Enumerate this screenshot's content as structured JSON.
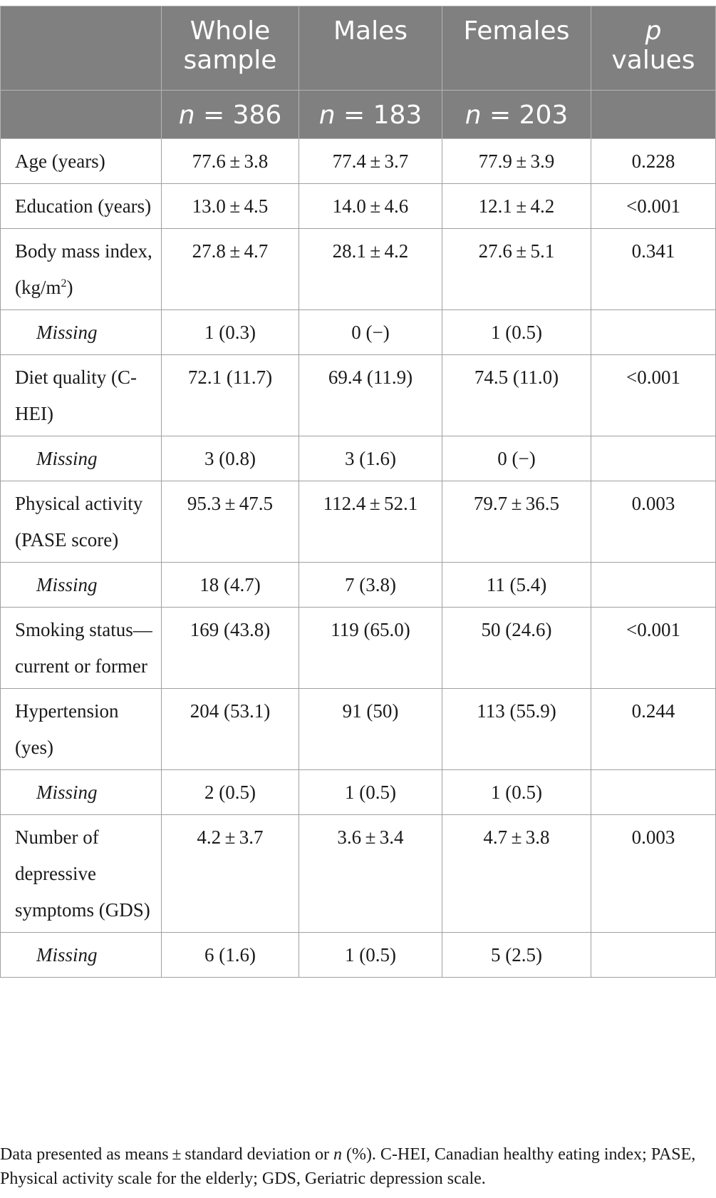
{
  "header": {
    "col0": "",
    "col1": "Whole sample",
    "col2": "Males",
    "col3": "Females",
    "col4_italic": "p",
    "col4_rest": "values",
    "n_symbol": "n",
    "n_whole": "= 386",
    "n_males": "= 183",
    "n_females": "= 203"
  },
  "rows": [
    {
      "label": "Age (years)",
      "whole": "77.6 ± 3.8",
      "males": "77.4 ± 3.7",
      "females": "77.9 ± 3.9",
      "p": "0.228"
    },
    {
      "label": "Education (years)",
      "whole": "13.0 ± 4.5",
      "males": "14.0 ± 4.6",
      "females": "12.1 ± 4.2",
      "p": "<0.001"
    },
    {
      "label": "Body mass index, (kg/m",
      "label_sup": "2",
      "label_end": ")",
      "whole": "27.8 ± 4.7",
      "males": "28.1 ± 4.2",
      "females": "27.6 ± 5.1",
      "p": "0.341"
    },
    {
      "label": "Missing",
      "whole": "1 (0.3)",
      "males": "0 (−)",
      "females": "1 (0.5)",
      "p": ""
    },
    {
      "label": "Diet quality (C-HEI)",
      "whole": "72.1 (11.7)",
      "males": "69.4 (11.9)",
      "females": "74.5 (11.0)",
      "p": "<0.001"
    },
    {
      "label": "Missing",
      "whole": "3 (0.8)",
      "males": "3 (1.6)",
      "females": "0 (−)",
      "p": ""
    },
    {
      "label": "Physical activity (PASE score)",
      "whole": "95.3 ± 47.5",
      "males": "112.4 ± 52.1",
      "females": "79.7 ± 36.5",
      "p": "0.003"
    },
    {
      "label": "Missing",
      "whole": "18 (4.7)",
      "males": "7 (3.8)",
      "females": "11 (5.4)",
      "p": ""
    },
    {
      "label": "Smoking status—current or former",
      "whole": "169 (43.8)",
      "males": "119 (65.0)",
      "females": "50 (24.6)",
      "p": "<0.001"
    },
    {
      "label": "Hypertension (yes)",
      "whole": "204 (53.1)",
      "males": "91 (50)",
      "females": "113 (55.9)",
      "p": "0.244"
    },
    {
      "label": "Missing",
      "whole": "2 (0.5)",
      "males": "1 (0.5)",
      "females": "1 (0.5)",
      "p": ""
    },
    {
      "label": "Number of depressive symptoms (GDS)",
      "whole": "4.2 ± 3.7",
      "males": "3.6 ± 3.4",
      "females": "4.7 ± 3.8",
      "p": "0.003"
    },
    {
      "label": "Missing",
      "whole": "6 (1.6)",
      "males": "1 (0.5)",
      "females": "5 (2.5)",
      "p": ""
    }
  ],
  "footnote": {
    "part1": "Data presented as means ± standard deviation or ",
    "n_italic": "n",
    "part2": " (%). C-HEI, Canadian healthy eating index; PASE, Physical activity scale for the elderly; GDS, Geriatric depression scale."
  }
}
